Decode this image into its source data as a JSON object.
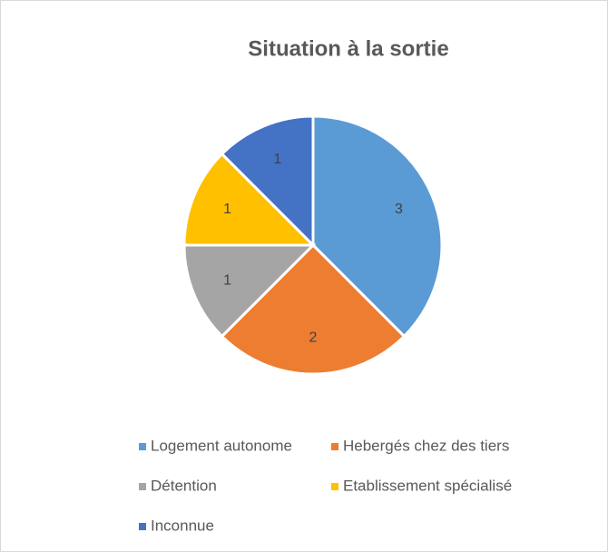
{
  "chart_data": {
    "type": "pie",
    "title": "Situation à la sortie",
    "categories": [
      "Logement autonome",
      "Hebergés chez des tiers",
      "Détention",
      "Etablissement spécialisé",
      "Inconnue"
    ],
    "values": [
      3,
      2,
      1,
      1,
      1
    ],
    "colors": [
      "#5b9bd5",
      "#ed7d31",
      "#a5a5a5",
      "#ffc000",
      "#4472c4"
    ],
    "legend": "bottom"
  }
}
